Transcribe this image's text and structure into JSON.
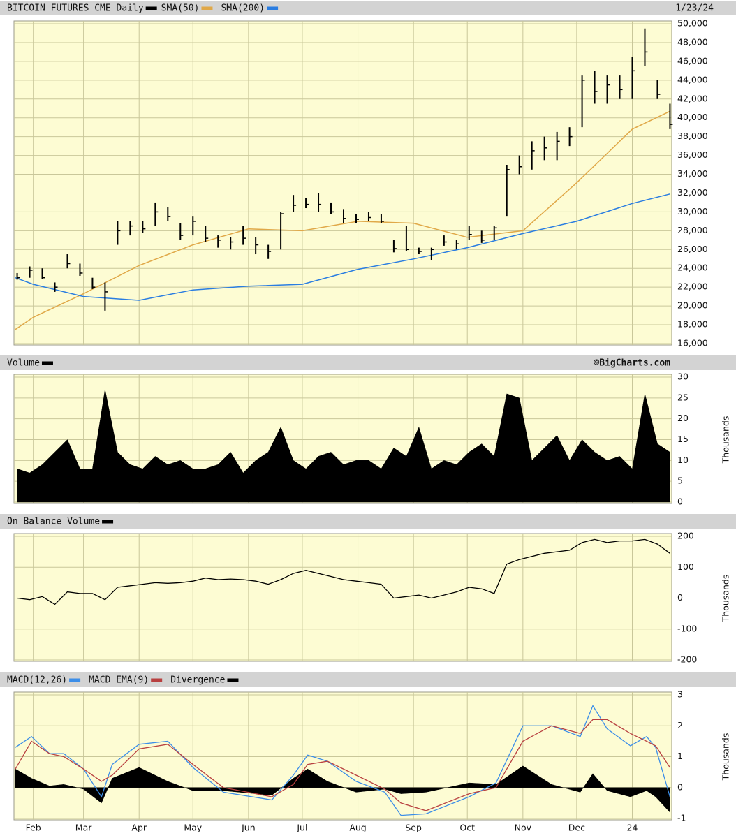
{
  "chart_data": [
    {
      "type": "ohlc",
      "title": "BITCOIN FUTURES CME Daily",
      "date": "1/23/24",
      "color": "#000000",
      "x": [
        -1,
        6,
        13,
        20,
        27,
        34,
        41,
        48,
        55,
        62,
        69,
        76,
        83,
        90,
        97,
        104,
        111,
        118,
        125,
        132,
        139,
        146,
        153,
        160,
        167,
        174,
        181,
        188,
        195,
        202,
        209,
        216,
        223,
        230,
        237,
        244,
        251,
        258,
        265,
        272,
        279,
        286,
        293,
        300,
        307,
        314,
        321,
        328,
        335,
        342,
        349,
        356,
        363
      ],
      "high": [
        23500,
        24200,
        24000,
        22500,
        25500,
        24500,
        23000,
        22500,
        29000,
        29000,
        29000,
        31000,
        30500,
        28800,
        29500,
        28500,
        27500,
        27300,
        28500,
        27300,
        26500,
        30000,
        31800,
        31500,
        32000,
        31000,
        30300,
        29800,
        30000,
        29800,
        27000,
        28500,
        26200,
        26200,
        27500,
        27000,
        28500,
        28000,
        28500,
        35000,
        36000,
        37500,
        38000,
        38500,
        39000,
        44500,
        45000,
        44500,
        44500,
        46500,
        49500,
        44000,
        41500
      ],
      "low": [
        22800,
        23000,
        22900,
        21500,
        24000,
        23200,
        21800,
        19500,
        26500,
        27500,
        27800,
        28500,
        29000,
        27000,
        27500,
        26800,
        26200,
        26000,
        26500,
        25500,
        25000,
        26000,
        30000,
        30400,
        30000,
        29800,
        28800,
        28800,
        29000,
        28800,
        25700,
        25800,
        25500,
        24900,
        26400,
        26000,
        27000,
        26700,
        27000,
        29500,
        34000,
        34500,
        35500,
        35500,
        37000,
        39000,
        41500,
        41500,
        42000,
        42000,
        45500,
        42000,
        38800
      ],
      "close": [
        23000,
        23800,
        23000,
        22000,
        24500,
        23500,
        22000,
        21500,
        28000,
        28500,
        28200,
        30000,
        29500,
        27500,
        29000,
        27200,
        27000,
        26800,
        27200,
        26500,
        25800,
        29800,
        30700,
        30800,
        30800,
        30000,
        29300,
        29200,
        29400,
        29000,
        26100,
        26000,
        25800,
        26000,
        26800,
        26600,
        27600,
        27000,
        28300,
        34500,
        34800,
        36500,
        36800,
        37500,
        38000,
        44000,
        42800,
        43500,
        43000,
        45000,
        47000,
        42500,
        39300
      ],
      "series": [
        {
          "name": "SMA(50)",
          "color": "#e0a848",
          "x": [
            -2,
            8,
            36,
            67,
            97,
            128,
            158,
            189,
            220,
            250,
            281,
            311,
            342,
            363
          ],
          "values": [
            17500,
            18800,
            21300,
            24300,
            26500,
            28200,
            28000,
            29000,
            28800,
            27300,
            28000,
            33100,
            38800,
            40700
          ]
        },
        {
          "name": "SMA(200)",
          "color": "#2a7de1",
          "x": [
            -2,
            8,
            36,
            67,
            97,
            128,
            158,
            189,
            220,
            250,
            281,
            311,
            342,
            363
          ],
          "values": [
            23000,
            22300,
            21000,
            20600,
            21700,
            22100,
            22300,
            23900,
            25000,
            26200,
            27700,
            29000,
            30900,
            31900
          ]
        }
      ],
      "xlim": [
        -2,
        364
      ],
      "ylim": [
        16000,
        50000
      ],
      "yticks": [
        {
          "value": 16000,
          "label": "16,000"
        },
        {
          "value": 18000,
          "label": "18,000"
        },
        {
          "value": 20000,
          "label": "20,000"
        },
        {
          "value": 22000,
          "label": "22,000"
        },
        {
          "value": 24000,
          "label": "24,000"
        },
        {
          "value": 26000,
          "label": "26,000"
        },
        {
          "value": 28000,
          "label": "28,000"
        },
        {
          "value": 30000,
          "label": "30,000"
        },
        {
          "value": 32000,
          "label": "32,000"
        },
        {
          "value": 34000,
          "label": "34,000"
        },
        {
          "value": 36000,
          "label": "36,000"
        },
        {
          "value": 38000,
          "label": "38,000"
        },
        {
          "value": 40000,
          "label": "40,000"
        },
        {
          "value": 42000,
          "label": "42,000"
        },
        {
          "value": 44000,
          "label": "44,000"
        },
        {
          "value": 46000,
          "label": "46,000"
        },
        {
          "value": 48000,
          "label": "48,000"
        },
        {
          "value": 50000,
          "label": "50,000"
        }
      ],
      "grid": true
    },
    {
      "type": "area",
      "title": "Volume",
      "credit": "©BigCharts.com",
      "color": "#000000",
      "ylabel": "Thousands",
      "x": [
        -1,
        6,
        13,
        20,
        27,
        34,
        41,
        48,
        55,
        62,
        69,
        76,
        83,
        90,
        97,
        104,
        111,
        118,
        125,
        132,
        139,
        146,
        153,
        160,
        167,
        174,
        181,
        188,
        195,
        202,
        209,
        216,
        223,
        230,
        237,
        244,
        251,
        258,
        265,
        272,
        279,
        286,
        293,
        300,
        307,
        314,
        321,
        328,
        335,
        342,
        349,
        356,
        363
      ],
      "values": [
        8,
        7,
        9,
        12,
        15,
        8,
        8,
        27,
        12,
        9,
        8,
        11,
        9,
        10,
        8,
        8,
        9,
        12,
        7,
        10,
        12,
        18,
        10,
        8,
        11,
        12,
        9,
        10,
        10,
        8,
        13,
        11,
        18,
        8,
        10,
        9,
        12,
        14,
        11,
        26,
        25,
        10,
        13,
        16,
        10,
        15,
        12,
        10,
        11,
        8,
        26,
        14,
        12
      ],
      "xlim": [
        -2,
        364
      ],
      "ylim": [
        0,
        30
      ],
      "yticks": [
        0,
        5,
        10,
        15,
        20,
        25,
        30
      ],
      "grid": true
    },
    {
      "type": "line",
      "title": "On Balance Volume",
      "color": "#000000",
      "ylabel": "Thousands",
      "x": [
        -1,
        6,
        13,
        20,
        27,
        34,
        41,
        48,
        55,
        62,
        69,
        76,
        83,
        90,
        97,
        104,
        111,
        118,
        125,
        132,
        139,
        146,
        153,
        160,
        167,
        174,
        181,
        188,
        195,
        202,
        209,
        216,
        223,
        230,
        237,
        244,
        251,
        258,
        265,
        272,
        279,
        286,
        293,
        300,
        307,
        314,
        321,
        328,
        335,
        342,
        349,
        356,
        363
      ],
      "values": [
        0,
        -5,
        5,
        -20,
        20,
        15,
        15,
        -5,
        35,
        40,
        45,
        50,
        48,
        50,
        55,
        65,
        60,
        62,
        60,
        55,
        45,
        60,
        80,
        90,
        80,
        70,
        60,
        55,
        50,
        45,
        0,
        5,
        10,
        0,
        10,
        20,
        35,
        30,
        15,
        110,
        125,
        135,
        145,
        150,
        155,
        180,
        190,
        180,
        185,
        185,
        190,
        175,
        145
      ],
      "xlim": [
        -2,
        364
      ],
      "ylim": [
        -200,
        200
      ],
      "yticks": [
        -200,
        -100,
        0,
        100,
        200
      ],
      "grid": true
    },
    {
      "type": "macd",
      "ylabel": "Thousands",
      "x": [
        -2,
        7,
        17,
        25,
        36,
        46,
        52,
        67,
        83,
        97,
        114,
        141,
        153,
        161,
        172,
        188,
        204,
        213,
        227,
        251,
        266,
        281,
        297,
        313,
        320,
        328,
        341,
        350,
        355,
        363
      ],
      "series": [
        {
          "name": "MACD(12,26)",
          "color": "#3c8ee8",
          "type": "line",
          "values": [
            1.3,
            1.65,
            1.1,
            1.1,
            0.6,
            -0.3,
            0.75,
            1.4,
            1.5,
            0.65,
            -0.15,
            -0.4,
            0.4,
            1.05,
            0.85,
            0.2,
            -0.15,
            -0.9,
            -0.85,
            -0.3,
            0.15,
            2.0,
            2.0,
            1.65,
            2.65,
            1.9,
            1.35,
            1.65,
            1.3,
            -0.3
          ]
        },
        {
          "name": "MACD EMA(9)",
          "color": "#b84040",
          "type": "line",
          "values": [
            0.6,
            1.5,
            1.1,
            1.0,
            0.6,
            0.2,
            0.4,
            1.25,
            1.4,
            0.75,
            0,
            -0.3,
            0.1,
            0.75,
            0.85,
            0.4,
            -0.05,
            -0.5,
            -0.75,
            -0.2,
            0,
            1.5,
            2.0,
            1.75,
            2.2,
            2.2,
            1.75,
            1.5,
            1.35,
            0.65
          ]
        },
        {
          "name": "Divergence",
          "color": "#000000",
          "type": "area",
          "values": [
            0.6,
            0.3,
            0.05,
            0.1,
            -0.05,
            -0.5,
            0.3,
            0.65,
            0.2,
            -0.1,
            -0.1,
            -0.25,
            0.3,
            0.6,
            0.2,
            -0.15,
            -0.05,
            -0.2,
            -0.15,
            0.15,
            0.1,
            0.7,
            0.1,
            -0.15,
            0.45,
            -0.1,
            -0.3,
            -0.1,
            -0.3,
            -0.8
          ]
        }
      ],
      "xlim": [
        -2,
        364
      ],
      "ylim": [
        -1,
        3
      ],
      "yticks": [
        -1,
        0,
        1,
        2,
        3
      ],
      "grid": true,
      "xticks": [
        {
          "value": 8,
          "label": "Feb"
        },
        {
          "value": 36,
          "label": "Mar"
        },
        {
          "value": 67,
          "label": "Apr"
        },
        {
          "value": 97,
          "label": "May"
        },
        {
          "value": 128,
          "label": "Jun"
        },
        {
          "value": 158,
          "label": "Jul"
        },
        {
          "value": 189,
          "label": "Aug"
        },
        {
          "value": 220,
          "label": "Sep"
        },
        {
          "value": 250,
          "label": "Oct"
        },
        {
          "value": 281,
          "label": "Nov"
        },
        {
          "value": 311,
          "label": "Dec"
        },
        {
          "value": 342,
          "label": "24"
        }
      ]
    }
  ]
}
